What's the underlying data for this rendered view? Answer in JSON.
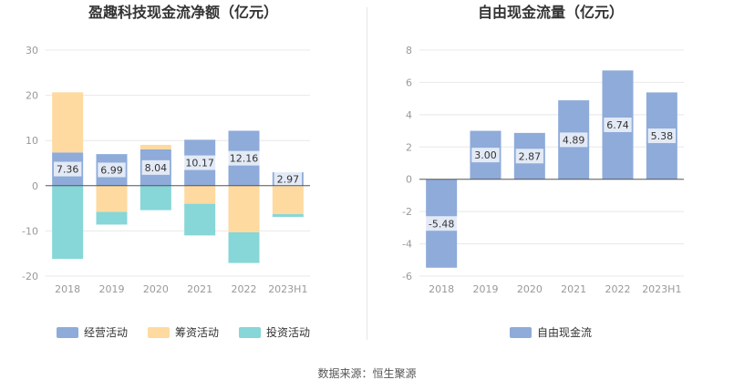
{
  "colors": {
    "operating": "#8eabd9",
    "financing": "#fedaa0",
    "investing": "#87d6d8",
    "fcf": "#8eabd9",
    "axis": "#999999",
    "grid": "#e8e8e8",
    "zero": "#555555"
  },
  "source_text": "数据来源：恒生聚源",
  "chart_data": [
    {
      "id": "net-cash-flow",
      "type": "bar",
      "stacked": true,
      "title": "盈趣科技现金流净额（亿元）",
      "categories": [
        "2018",
        "2019",
        "2020",
        "2021",
        "2022",
        "2023H1"
      ],
      "ylim": [
        -20,
        30
      ],
      "yticks": [
        -20,
        -10,
        0,
        10,
        20,
        30
      ],
      "label_series": "经营活动",
      "series": [
        {
          "name": "经营活动",
          "color_key": "operating",
          "values": [
            7.36,
            6.99,
            8.04,
            10.17,
            12.16,
            2.97
          ]
        },
        {
          "name": "筹资活动",
          "color_key": "financing",
          "values": [
            13.3,
            -5.8,
            1.0,
            -4.0,
            -10.3,
            -6.3
          ]
        },
        {
          "name": "投资活动",
          "color_key": "investing",
          "values": [
            -16.2,
            -2.8,
            -5.4,
            -7.0,
            -6.8,
            -0.6
          ]
        }
      ]
    },
    {
      "id": "free-cash-flow",
      "type": "bar",
      "stacked": false,
      "title": "自由现金流量（亿元）",
      "categories": [
        "2018",
        "2019",
        "2020",
        "2021",
        "2022",
        "2023H1"
      ],
      "ylim": [
        -6,
        8
      ],
      "yticks": [
        -6,
        -4,
        -2,
        0,
        2,
        4,
        6,
        8
      ],
      "label_series": "自由现金流",
      "series": [
        {
          "name": "自由现金流",
          "color_key": "fcf",
          "values": [
            -5.48,
            3.0,
            2.87,
            4.89,
            6.74,
            5.38
          ]
        }
      ]
    }
  ]
}
